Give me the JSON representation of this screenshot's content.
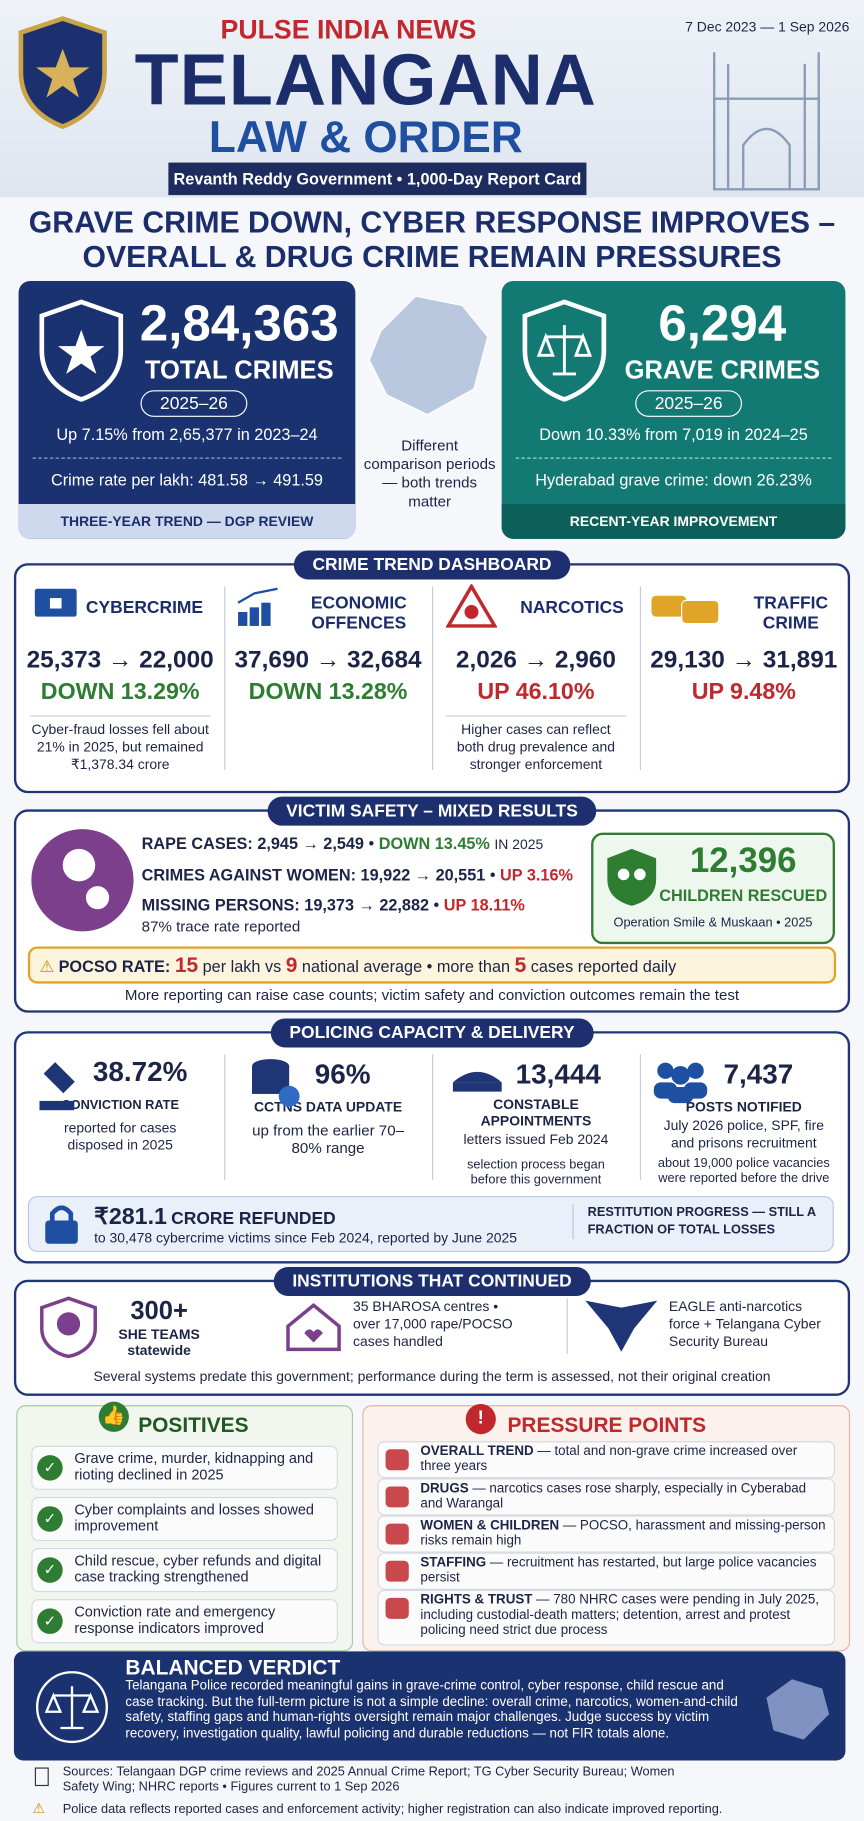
{
  "header": {
    "brand": "PULSE INDIA NEWS",
    "title": "TELANGANA",
    "subtitle": "LAW & ORDER",
    "date": "7 Dec 2023 — 1 Sep 2026",
    "tagline": "Revanth Reddy Government • 1,000-Day Report Card"
  },
  "headline": [
    "GRAVE CRIME DOWN, CYBER RESPONSE IMPROVES –",
    "OVERALL & DRUG CRIME REMAIN PRESSURES"
  ],
  "total": {
    "value": "2,84,363",
    "label": "TOTAL CRIMES",
    "period": "2025–26",
    "change": "Up 7.15% from 2,65,377 in 2023–24",
    "rate": "Crime rate per lakh: 481.58 → 491.59",
    "footer": "THREE-YEAR TREND — DGP REVIEW"
  },
  "comparison_note": "Different comparison periods — both trends matter",
  "grave": {
    "value": "6,294",
    "label": "GRAVE CRIMES",
    "period": "2025–26",
    "change": "Down 10.33% from 7,019 in 2024–25",
    "hyderabad": "Hyderabad grave crime: down 26.23%",
    "footer": "RECENT-YEAR IMPROVEMENT"
  },
  "dashboard": {
    "title": "CRIME TREND DASHBOARD",
    "items": [
      {
        "name": "CYBERCRIME",
        "figures": "25,373 → 22,000",
        "change": "DOWN 13.29%",
        "note": "Cyber-fraud losses fell about 21% in 2025, but remained ₹1,378.34 crore"
      },
      {
        "name": "ECONOMIC OFFENCES",
        "figures": "37,690 → 32,684",
        "change": "DOWN 13.28%"
      },
      {
        "name": "NARCOTICS",
        "figures": "2,026 → 2,960",
        "change": "UP 46.10%",
        "note": "Higher cases can reflect both drug prevalence and stronger enforcement"
      },
      {
        "name": "TRAFFIC CRIME",
        "figures": "29,130 → 31,891",
        "change": "UP 9.48%"
      }
    ]
  },
  "victim": {
    "title": "VICTIM SAFETY – MIXED RESULTS",
    "rows": [
      {
        "label": "RAPE CASES:",
        "figures": "2,945 → 2,549",
        "change": "DOWN 13.45%",
        "suffix": "IN 2025"
      },
      {
        "label": "CRIMES AGAINST WOMEN:",
        "figures": "19,922 → 20,551",
        "change": "UP 3.16%"
      },
      {
        "label": "MISSING PERSONS:",
        "figures": "19,373 → 22,882",
        "change": "UP 18.11%",
        "sub": "87% trace rate reported"
      }
    ],
    "children": {
      "value": "12,396",
      "label": "CHILDREN RESCUED",
      "note": "Operation Smile & Muskaan • 2025"
    },
    "pocso": {
      "label": "POCSO RATE:",
      "rate": "15",
      "text1": "per lakh vs",
      "national": "9",
      "text2": "national average  •  more than",
      "daily": "5",
      "text3": "cases reported daily"
    },
    "note": "More reporting can raise case counts; victim safety and conviction outcomes remain the test"
  },
  "policing": {
    "title": "POLICING CAPACITY & DELIVERY",
    "items": [
      {
        "value": "38.72%",
        "label": "CONVICTION RATE",
        "note": "reported for cases disposed in 2025"
      },
      {
        "value": "96%",
        "label": "CCTNS DATA UPDATE",
        "note": "up from the earlier 70–80% range"
      },
      {
        "value": "13,444",
        "label": "CONSTABLE APPOINTMENTS",
        "note": "letters issued Feb 2024",
        "note2": "selection process began before this government"
      },
      {
        "value": "7,437",
        "label": "POSTS NOTIFIED",
        "note": "July 2026 police, SPF, fire and prisons recruitment",
        "note2": "about 19,000 police vacancies were reported before the drive"
      }
    ],
    "refund": {
      "value": "₹281.1",
      "label": "CRORE REFUNDED",
      "note": "to 30,478 cybercrime victims since Feb 2024, reported by June 2025",
      "side": "RESTITUTION PROGRESS — STILL A FRACTION OF TOTAL LOSSES"
    }
  },
  "institutions": {
    "title": "INSTITUTIONS THAT CONTINUED",
    "items": [
      {
        "value": "300+",
        "text": "SHE TEAMS statewide"
      },
      {
        "text": "35 BHAROSA centres • over 17,000 rape/POCSO cases handled"
      },
      {
        "text": "EAGLE anti-narcotics force + Telangana Cyber Security Bureau"
      }
    ],
    "note": "Several systems predate this government; performance during the term is assessed, not their original creation"
  },
  "positives": {
    "title": "POSITIVES",
    "items": [
      "Grave crime, murder, kidnapping and rioting declined in 2025",
      "Cyber complaints and losses showed improvement",
      "Child rescue, cyber refunds and digital case tracking strengthened",
      "Conviction rate and emergency response indicators improved"
    ]
  },
  "pressure": {
    "title": "PRESSURE POINTS",
    "items": [
      {
        "head": "OVERALL TREND",
        "text": "— total and non-grave crime increased over three years"
      },
      {
        "head": "DRUGS",
        "text": "— narcotics cases rose sharply, especially in Cyberabad and Warangal"
      },
      {
        "head": "WOMEN & CHILDREN",
        "text": "— POCSO, harassment and missing-person risks remain high"
      },
      {
        "head": "STAFFING",
        "text": "— recruitment has restarted, but large police vacancies persist"
      },
      {
        "head": "RIGHTS & TRUST",
        "text": "— 780 NHRC cases were pending in July 2025, including custodial-death matters; detention, arrest and protest policing need strict due process"
      }
    ]
  },
  "verdict": {
    "title": "BALANCED VERDICT",
    "text": "Telangana Police recorded meaningful gains in grave-crime control, cyber response, child rescue and case tracking. But the full-term picture is not a simple decline: overall crime, narcotics, women-and-child safety, staffing gaps and human-rights oversight remain major challenges. Judge success by victim recovery, investigation quality, lawful policing and durable reductions — not FIR totals alone."
  },
  "sources": "Sources: Telangaan DGP crime reviews and 2025 Annual Crime Report; TG Cyber Security Bureau; Women Safety Wing; NHRC reports • Figures current to 1 Sep 2026",
  "disclaimer": "Police data reflects reported cases and enforcement activity; higher registration can also indicate improved reporting."
}
